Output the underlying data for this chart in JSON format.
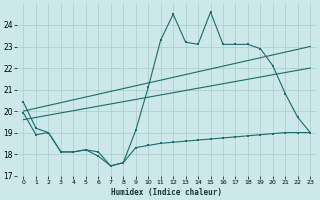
{
  "xlabel": "Humidex (Indice chaleur)",
  "background_color": "#cce8e8",
  "grid_color": "#aacccc",
  "line_color": "#1a6b6b",
  "xlim": [
    -0.5,
    23.5
  ],
  "ylim": [
    17,
    25
  ],
  "yticks": [
    17,
    18,
    19,
    20,
    21,
    22,
    23,
    24
  ],
  "xticks": [
    0,
    1,
    2,
    3,
    4,
    5,
    6,
    7,
    8,
    9,
    10,
    11,
    12,
    13,
    14,
    15,
    16,
    17,
    18,
    19,
    20,
    21,
    22,
    23
  ],
  "series1_x": [
    0,
    1,
    2,
    3,
    4,
    5,
    6,
    7,
    8,
    9,
    10,
    11,
    12,
    13,
    14,
    15,
    16,
    17,
    18,
    19,
    20,
    21,
    22,
    23
  ],
  "series1_y": [
    20.4,
    19.2,
    19.0,
    18.1,
    18.1,
    18.2,
    18.1,
    17.45,
    17.6,
    19.1,
    21.1,
    23.3,
    24.5,
    23.2,
    23.1,
    24.6,
    23.1,
    23.1,
    23.1,
    22.9,
    22.1,
    20.8,
    19.7,
    19.0
  ],
  "series2_x": [
    0,
    23
  ],
  "series2_y": [
    19.6,
    22.0
  ],
  "series3_x": [
    0,
    23
  ],
  "series3_y": [
    20.0,
    23.0
  ],
  "series4_x": [
    0,
    1,
    2,
    3,
    4,
    5,
    6,
    7,
    8,
    9,
    10,
    11,
    12,
    13,
    14,
    15,
    16,
    17,
    18,
    19,
    20,
    21,
    22,
    23
  ],
  "series4_y": [
    19.9,
    18.9,
    19.0,
    18.1,
    18.1,
    18.2,
    17.9,
    17.45,
    17.6,
    18.3,
    18.4,
    18.5,
    18.55,
    18.6,
    18.65,
    18.7,
    18.75,
    18.8,
    18.85,
    18.9,
    18.95,
    19.0,
    19.0,
    19.0
  ]
}
